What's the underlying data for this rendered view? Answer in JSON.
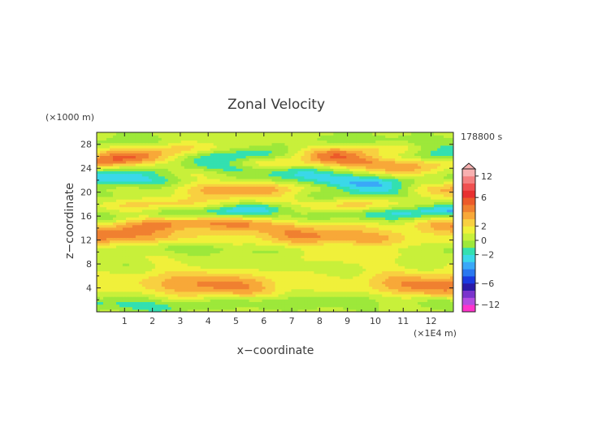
{
  "chart_data": {
    "type": "heatmap",
    "title": "Zonal Velocity",
    "xlabel": "x−coordinate",
    "ylabel": "z−coordinate",
    "x_unit": "(×1E4 m)",
    "y_unit": "(×1000 m)",
    "time_label": "178800 s",
    "xlim": [
      0,
      12.8
    ],
    "ylim": [
      0,
      30
    ],
    "x_ticks": [
      "1",
      "2",
      "3",
      "4",
      "5",
      "6",
      "7",
      "8",
      "9",
      "10",
      "11",
      "12"
    ],
    "y_ticks": [
      "4",
      "8",
      "12",
      "16",
      "20",
      "24",
      "28"
    ],
    "colorbar": {
      "tick_labels": [
        {
          "value": 12,
          "label": "12"
        },
        {
          "value": 6,
          "label": "6"
        },
        {
          "value": 2,
          "label": "2"
        },
        {
          "value": 0,
          "label": "0"
        },
        {
          "value": -2,
          "label": "−2"
        },
        {
          "value": -6,
          "label": "−6"
        },
        {
          "value": -12,
          "label": "−12"
        }
      ],
      "levels": [
        -15,
        -12,
        -10,
        -8,
        -6,
        -5,
        -4,
        -3,
        -2,
        -1,
        0,
        1,
        2,
        3,
        4,
        5,
        6,
        8,
        10,
        12,
        15
      ],
      "colors": [
        "#ff33cc",
        "#b44ce0",
        "#7a33cc",
        "#2a1aa8",
        "#1a3ae0",
        "#2a78f0",
        "#3aa8f8",
        "#3ad8e8",
        "#33e0b0",
        "#9de83a",
        "#c8f03a",
        "#f0f03a",
        "#f8d040",
        "#f8a838",
        "#f08030",
        "#ec5a2a",
        "#e83030",
        "#f05050",
        "#f48080",
        "#f8b0b0"
      ]
    },
    "bands": [
      {
        "z": 1.2,
        "u": -1.5,
        "w": 0.8
      },
      {
        "z": 2.0,
        "u": -1.2,
        "w": 0.8
      },
      {
        "z": 4.8,
        "u": 3.5,
        "w": 1.6
      },
      {
        "z": 7.5,
        "u": -0.6,
        "w": 1.2
      },
      {
        "z": 9.5,
        "u": 1.0,
        "w": 1.0
      },
      {
        "z": 10.5,
        "u": -1.5,
        "w": 0.8
      },
      {
        "z": 12.2,
        "u": 3.0,
        "w": 1.0
      },
      {
        "z": 13.5,
        "u": 1.0,
        "w": 1.0
      },
      {
        "z": 14.8,
        "u": 3.5,
        "w": 1.0
      },
      {
        "z": 15.8,
        "u": -1.5,
        "w": 0.8
      },
      {
        "z": 17.0,
        "u": -3.5,
        "w": 0.8
      },
      {
        "z": 18.2,
        "u": 2.5,
        "w": 1.0
      },
      {
        "z": 19.5,
        "u": -1.8,
        "w": 0.9
      },
      {
        "z": 20.8,
        "u": 3.5,
        "w": 1.0
      },
      {
        "z": 22.0,
        "u": -4.0,
        "w": 1.0
      },
      {
        "z": 23.0,
        "u": 1.0,
        "w": 0.8
      },
      {
        "z": 24.0,
        "u": -2.5,
        "w": 0.8
      },
      {
        "z": 25.0,
        "u": 4.0,
        "w": 1.0
      },
      {
        "z": 26.0,
        "u": -2.5,
        "w": 0.8
      },
      {
        "z": 27.0,
        "u": 2.0,
        "w": 0.8
      },
      {
        "z": 28.5,
        "u": -1.2,
        "w": 0.9
      }
    ]
  }
}
